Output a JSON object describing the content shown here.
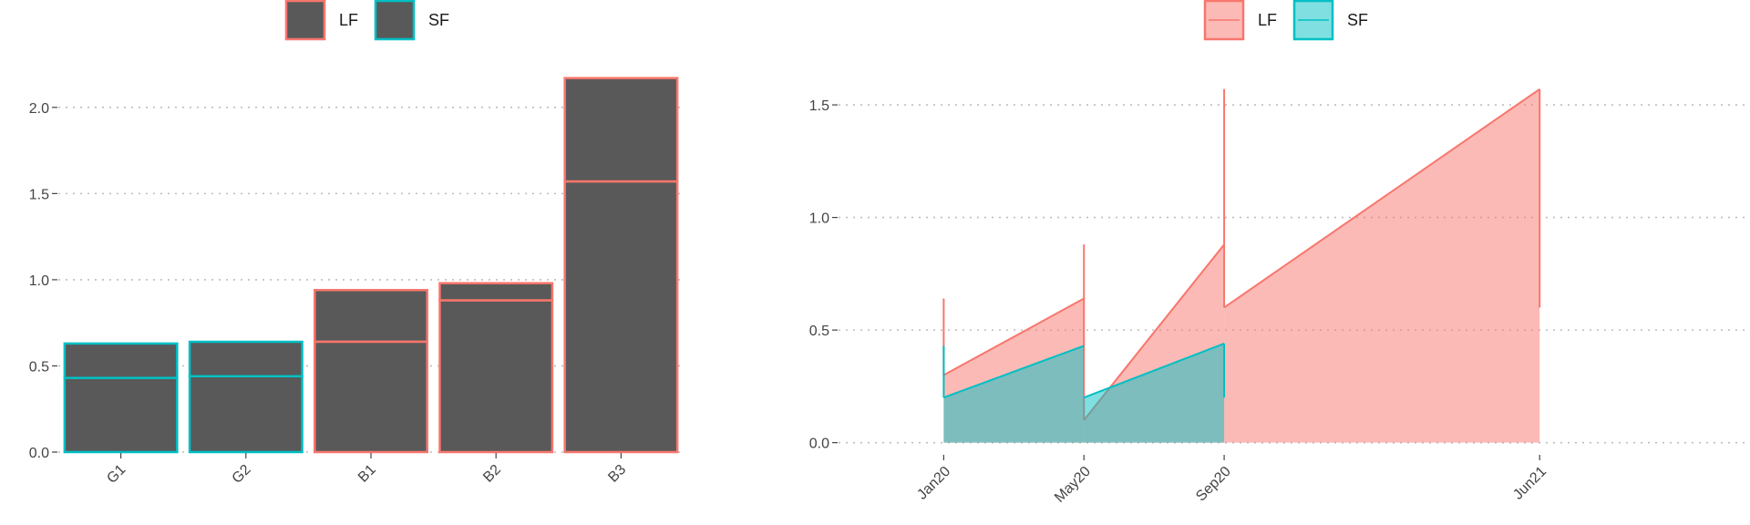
{
  "chart_data": [
    {
      "type": "bar",
      "stacked": true,
      "legend_position": "top",
      "legend": [
        "LF",
        "SF"
      ],
      "categories": [
        "G1",
        "G2",
        "B1",
        "B2",
        "B3"
      ],
      "series": [
        {
          "name": "LF",
          "values": [
            0.2,
            0.2,
            0.3,
            0.1,
            0.6
          ]
        },
        {
          "name": "SF",
          "values": [
            0.43,
            0.44,
            0.64,
            0.88,
            1.57
          ]
        }
      ],
      "outline_series": [
        "SF",
        "SF",
        "LF",
        "LF",
        "LF"
      ],
      "ylim": [
        0,
        2.2
      ],
      "yticks": [
        0.0,
        0.5,
        1.0,
        1.5,
        2.0
      ],
      "ytick_labels": [
        "0.0",
        "0.5",
        "1.0",
        "1.5",
        "2.0"
      ],
      "grid": "horizontal dotted",
      "xlabel": "",
      "ylabel": "",
      "colors": {
        "fill": "#595959",
        "LF": "#F8766D",
        "SF": "#00BFC4",
        "grid": "#bdbdbd"
      }
    },
    {
      "type": "area",
      "legend_position": "top",
      "legend": [
        "LF",
        "SF"
      ],
      "x_labels": [
        "Jan20",
        "May20",
        "Sep20",
        "Jun21"
      ],
      "x_label_months": [
        0,
        4,
        8,
        17
      ],
      "x_range_months": [
        -3,
        23
      ],
      "series": [
        {
          "name": "LF",
          "segments": [
            [
              [
                0,
                0.3
              ],
              [
                4,
                0.64
              ]
            ],
            [
              [
                4,
                0.1
              ],
              [
                8,
                0.88
              ]
            ],
            [
              [
                8,
                0.6
              ],
              [
                17,
                1.57
              ]
            ]
          ],
          "spikes": [
            [
              0,
              0.3,
              0.64
            ],
            [
              4,
              0.1,
              0.88
            ],
            [
              8,
              0.6,
              1.57
            ],
            [
              17,
              0.6,
              1.57
            ]
          ]
        },
        {
          "name": "SF",
          "segments": [
            [
              [
                0,
                0.2
              ],
              [
                4,
                0.43
              ]
            ],
            [
              [
                4,
                0.2
              ],
              [
                8,
                0.44
              ]
            ]
          ],
          "spikes": [
            [
              0,
              0.2,
              0.43
            ],
            [
              8,
              0.2,
              0.44
            ]
          ]
        }
      ],
      "ylim": [
        -0.05,
        1.65
      ],
      "yticks": [
        0.0,
        0.5,
        1.0,
        1.5
      ],
      "ytick_labels": [
        "0.0",
        "0.5",
        "1.0",
        "1.5"
      ],
      "grid": "horizontal dotted",
      "xlabel": "",
      "ylabel": "",
      "colors": {
        "LF": "#F8766D",
        "LF_fill": "#F8766D",
        "SF": "#00BFC4",
        "SF_fill": "#00BFC4",
        "grid": "#bdbdbd"
      }
    }
  ]
}
